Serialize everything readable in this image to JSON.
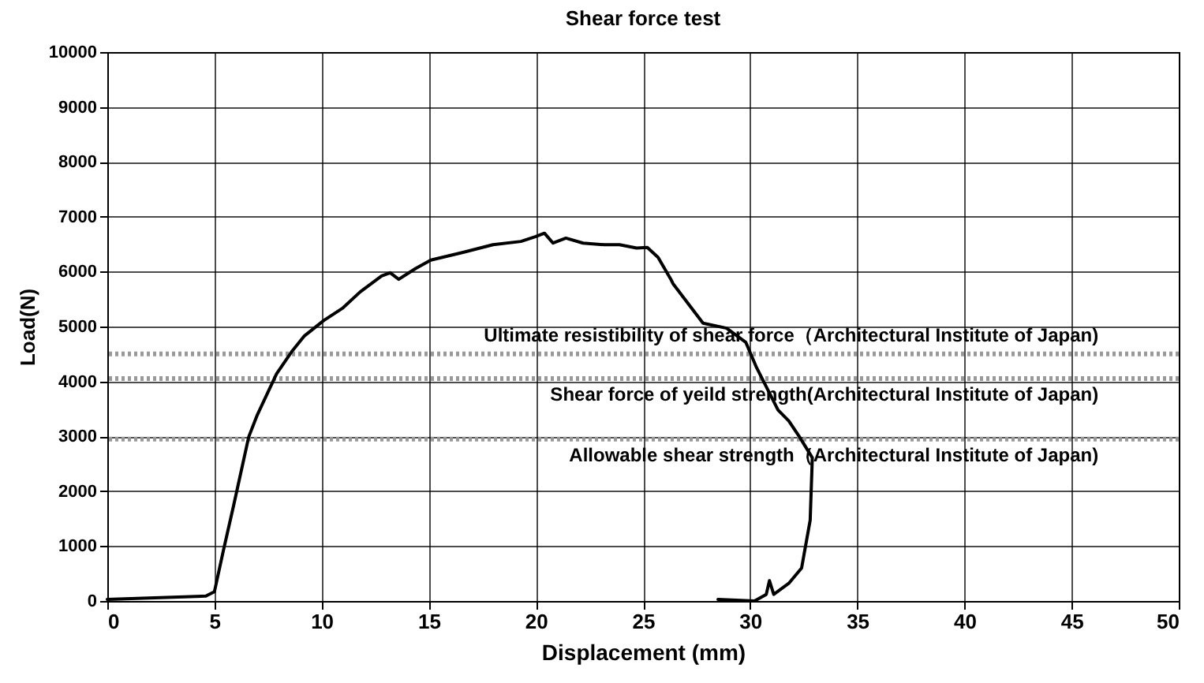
{
  "chart_data": {
    "type": "line",
    "title": "Shear force test",
    "xlabel": "Displacement (mm)",
    "ylabel": "Load(N)",
    "xlim": [
      0,
      50
    ],
    "xticks": [
      0,
      5,
      10,
      15,
      20,
      25,
      30,
      35,
      40,
      45,
      50
    ],
    "ylim": [
      0,
      10000
    ],
    "yticks": [
      0,
      1000,
      2000,
      3000,
      4000,
      5000,
      6000,
      7000,
      8000,
      9000,
      10000
    ],
    "grid": true,
    "marker": "none",
    "line_style": "solid",
    "series": [
      {
        "color": "#000000",
        "x": [
          0,
          4.6,
          5.0,
          5.4,
          5.9,
          6.6,
          7.0,
          7.9,
          8.6,
          9.2,
          10.1,
          11.0,
          11.8,
          12.8,
          13.2,
          13.6,
          14.4,
          15.1,
          16.6,
          18.0,
          19.3,
          20.0,
          20.4,
          20.8,
          21.4,
          22.2,
          23.2,
          23.9,
          24.7,
          25.2,
          25.7,
          26.3,
          26.4,
          27.8,
          28.9,
          29.8,
          30.3,
          31.3,
          31.8,
          32.3,
          32.9,
          32.8,
          32.4,
          31.8,
          31.1,
          30.9,
          30.75,
          30.2,
          28.5
        ],
        "values": [
          30,
          90,
          170,
          890,
          1750,
          2990,
          3390,
          4140,
          4540,
          4830,
          5110,
          5340,
          5630,
          5920,
          5980,
          5860,
          6060,
          6210,
          6350,
          6490,
          6550,
          6640,
          6700,
          6520,
          6610,
          6520,
          6490,
          6490,
          6430,
          6440,
          6260,
          5860,
          5780,
          5060,
          4970,
          4710,
          4250,
          3480,
          3280,
          2990,
          2610,
          1470,
          600,
          320,
          120,
          370,
          120,
          0,
          30
        ]
      }
    ],
    "ref_lines": [
      {
        "axis": "y",
        "value": 4500,
        "label": "Ultimate resistibility of shear force（Architectural Institute of Japan)",
        "color": "#999999",
        "line_style": "dotted"
      },
      {
        "axis": "y",
        "value": 4050,
        "label": "Shear force of yeild strength(Architectural Institute of Japan)",
        "color": "#999999",
        "line_style": "dotted"
      },
      {
        "axis": "y",
        "value": 2950,
        "label": "Allowable shear strength（Architectural Institute of Japan)",
        "color": "#999999",
        "line_style": "dotted"
      }
    ]
  }
}
